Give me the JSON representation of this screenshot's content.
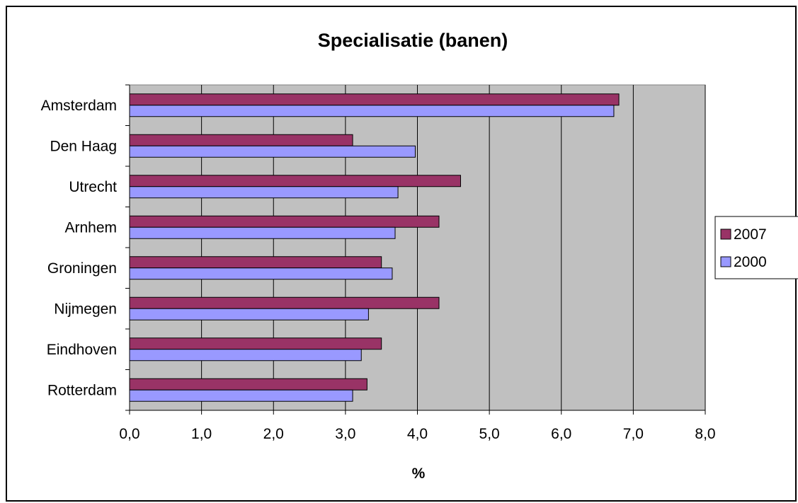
{
  "chart_data": {
    "type": "bar",
    "orientation": "horizontal",
    "title": "Specialisatie (banen)",
    "xlabel": "%",
    "ylabel": "",
    "xlim": [
      0,
      8
    ],
    "x_ticks": [
      "0,0",
      "1,0",
      "2,0",
      "3,0",
      "4,0",
      "5,0",
      "6,0",
      "7,0",
      "8,0"
    ],
    "categories": [
      "Amsterdam",
      "Den Haag",
      "Utrecht",
      "Arnhem",
      "Groningen",
      "Nijmegen",
      "Eindhoven",
      "Rotterdam"
    ],
    "series": [
      {
        "name": "2007",
        "color": "#993366",
        "values": [
          6.8,
          3.1,
          4.6,
          4.3,
          3.5,
          4.3,
          3.5,
          3.3
        ]
      },
      {
        "name": "2000",
        "color": "#9999ff",
        "values": [
          6.73,
          3.97,
          3.73,
          3.69,
          3.65,
          3.32,
          3.22,
          3.1
        ]
      }
    ],
    "grid": true,
    "plot_background": "#c0c0c0",
    "legend_position": "right"
  }
}
